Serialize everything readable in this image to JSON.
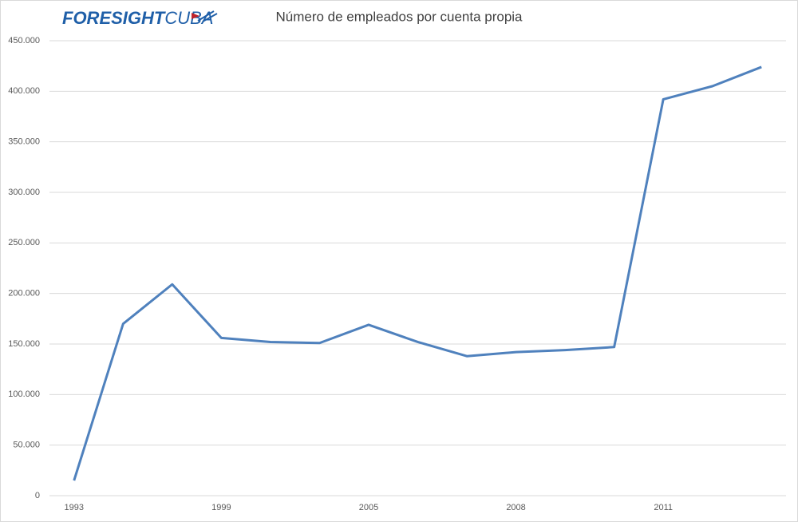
{
  "logo": {
    "first": "FORESIGHT",
    "second": "CUBA"
  },
  "chart_data": {
    "type": "line",
    "title": "Número de empleados por cuenta propia",
    "categories": [
      "1993",
      null,
      null,
      "1999",
      null,
      null,
      "2005",
      null,
      null,
      "2008",
      null,
      null,
      "2011",
      null,
      null
    ],
    "series": [
      {
        "name": "Empleados por cuenta propia",
        "color": "#4f81bd",
        "values": [
          15000,
          170000,
          209000,
          156000,
          152000,
          151000,
          169000,
          152000,
          138000,
          142000,
          144000,
          147000,
          392000,
          405000,
          424000
        ]
      }
    ],
    "ylim": [
      0,
      450000
    ],
    "yticks": [
      0,
      {
        "value": 50000,
        "label": "50.000"
      },
      {
        "value": 100000,
        "label": "100.000"
      },
      {
        "value": 150000,
        "label": "150.000"
      },
      {
        "value": 200000,
        "label": "200.000"
      },
      {
        "value": 250000,
        "label": "250.000"
      },
      {
        "value": 300000,
        "label": "300.000"
      },
      {
        "value": 350000,
        "label": "350.000"
      },
      {
        "value": 400000,
        "label": "400.000"
      },
      {
        "value": 450000,
        "label": "450.000"
      }
    ],
    "grid": true
  }
}
